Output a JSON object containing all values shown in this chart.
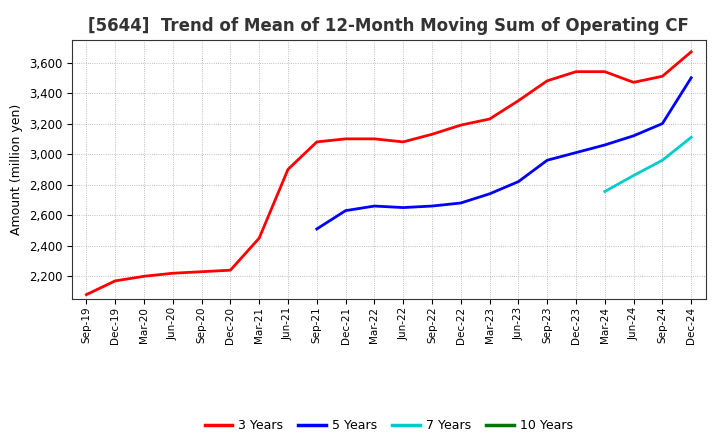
{
  "title": "[5644]  Trend of Mean of 12-Month Moving Sum of Operating CF",
  "ylabel": "Amount (million yen)",
  "ylim": [
    2050,
    3750
  ],
  "yticks": [
    2200,
    2400,
    2600,
    2800,
    3000,
    3200,
    3400,
    3600
  ],
  "background_color": "#ffffff",
  "plot_bg_color": "#f5f5f5",
  "grid_color": "#aaaaaa",
  "series": {
    "3 Years": {
      "color": "#ff0000",
      "data": {
        "Sep-19": 2080,
        "Dec-19": 2170,
        "Mar-20": 2200,
        "Jun-20": 2220,
        "Sep-20": 2230,
        "Dec-20": 2240,
        "Mar-21": 2450,
        "Jun-21": 2900,
        "Sep-21": 3080,
        "Dec-21": 3100,
        "Mar-22": 3100,
        "Jun-22": 3080,
        "Sep-22": 3130,
        "Dec-22": 3190,
        "Mar-23": 3230,
        "Jun-23": 3350,
        "Sep-23": 3480,
        "Dec-23": 3540,
        "Mar-24": 3540,
        "Jun-24": 3470,
        "Sep-24": 3510,
        "Dec-24": 3670
      }
    },
    "5 Years": {
      "color": "#0000ff",
      "data": {
        "Sep-21": 2510,
        "Dec-21": 2630,
        "Mar-22": 2660,
        "Jun-22": 2650,
        "Sep-22": 2660,
        "Dec-22": 2680,
        "Mar-23": 2740,
        "Jun-23": 2820,
        "Sep-23": 2960,
        "Dec-23": 3010,
        "Mar-24": 3060,
        "Jun-24": 3120,
        "Sep-24": 3200,
        "Dec-24": 3500
      }
    },
    "7 Years": {
      "color": "#00cccc",
      "data": {
        "Mar-24": 2755,
        "Jun-24": 2860,
        "Sep-24": 2960,
        "Dec-24": 3110
      }
    },
    "10 Years": {
      "color": "#007700",
      "data": {}
    }
  },
  "xtick_labels": [
    "Sep-19",
    "Dec-19",
    "Mar-20",
    "Jun-20",
    "Sep-20",
    "Dec-20",
    "Mar-21",
    "Jun-21",
    "Sep-21",
    "Dec-21",
    "Mar-22",
    "Jun-22",
    "Sep-22",
    "Dec-22",
    "Mar-23",
    "Jun-23",
    "Sep-23",
    "Dec-23",
    "Mar-24",
    "Jun-24",
    "Sep-24",
    "Dec-24"
  ],
  "legend_labels": [
    "3 Years",
    "5 Years",
    "7 Years",
    "10 Years"
  ],
  "legend_colors": [
    "#ff0000",
    "#0000ff",
    "#00cccc",
    "#007700"
  ],
  "linewidth": 2.0,
  "title_fontsize": 12,
  "ylabel_fontsize": 9,
  "xtick_fontsize": 7.5,
  "ytick_fontsize": 8.5
}
